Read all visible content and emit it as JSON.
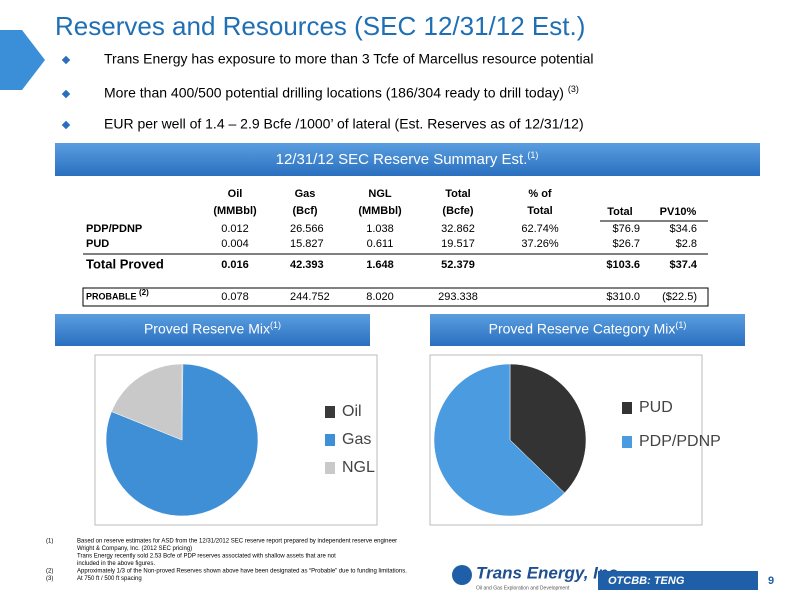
{
  "header": {
    "title": "Reserves and Resources (SEC 12/31/12 Est.)"
  },
  "bullets": [
    {
      "text": "Trans Energy has exposure to more than 3 Tcfe of Marcellus resource potential"
    },
    {
      "text": "More than 400/500 potential drilling locations (186/304 ready to drill today)",
      "note": "(3)"
    },
    {
      "text": "EUR per well of 1.4 – 2.9 Bcfe /1000’ of lateral (Est. Reserves as of 12/31/12)"
    }
  ],
  "summary": {
    "title": "12/31/12 SEC Reserve Summary Est.",
    "note": "(1)"
  },
  "table": {
    "headers": [
      [
        "Oil",
        "(MMBbl)"
      ],
      [
        "Gas",
        "(Bcf)"
      ],
      [
        "NGL",
        "(MMBbl)"
      ],
      [
        "Total",
        "(Bcfe)"
      ],
      [
        "% of",
        "Total"
      ],
      [
        "Total"
      ],
      [
        "PV10%"
      ]
    ],
    "rows": [
      {
        "label": "PDP/PDNP",
        "cells": [
          "0.012",
          "26.566",
          "1.038",
          "32.862",
          "62.74%",
          "$76.9",
          "$34.6"
        ]
      },
      {
        "label": "PUD",
        "cells": [
          "0.004",
          "15.827",
          "0.611",
          "19.517",
          "37.26%",
          "$26.7",
          "$2.8"
        ]
      },
      {
        "label": "Total Proved",
        "cells": [
          "0.016",
          "42.393",
          "1.648",
          "52.379",
          null,
          "$103.6",
          "$37.4"
        ]
      },
      {
        "label": "PROBABLE",
        "note": "(2)",
        "cells": [
          "0.078",
          "244.752",
          "8.020",
          "293.338",
          null,
          "$310.0",
          "($22.5)"
        ]
      }
    ]
  },
  "chart_data": [
    {
      "type": "pie",
      "title": "Proved Reserve Mix",
      "title_note": "(1)",
      "categories": [
        "Oil",
        "Gas",
        "NGL"
      ],
      "values": [
        0.2,
        80.9,
        18.9
      ],
      "colors": [
        "#3a3a3a",
        "#3f8fd6",
        "#c9c9c9"
      ]
    },
    {
      "type": "pie",
      "title": "Proved Reserve Category Mix",
      "title_note": "(1)",
      "categories": [
        "PUD",
        "PDP/PDNP"
      ],
      "values": [
        37.26,
        62.74
      ],
      "colors": [
        "#333333",
        "#4a9be0"
      ]
    }
  ],
  "footnotes": [
    {
      "marker": "(1)",
      "lines": [
        "Based on reserve estimates for ASD from the 12/31/2012 SEC reserve report prepared by independent reserve engineer",
        "Wright & Company, Inc. (2012 SEC pricing)",
        "Trans Energy recently sold 2.53 Bcfe of PDP reserves associated with shallow assets that are not",
        "included in the above figures."
      ]
    },
    {
      "marker": "(2)",
      "lines": [
        "Approximately 1/3 of the Non-proved Reserves shown above have been designated as “Probable” due to funding limitations."
      ]
    },
    {
      "marker": "(3)",
      "lines": [
        "At 750 ft / 500 ft spacing"
      ]
    }
  ],
  "footer": {
    "company": "Trans Energy, Inc.",
    "tagline": "Oil and Gas Exploration and Development",
    "ticker": "OTCBB: TENG",
    "page": "9"
  }
}
